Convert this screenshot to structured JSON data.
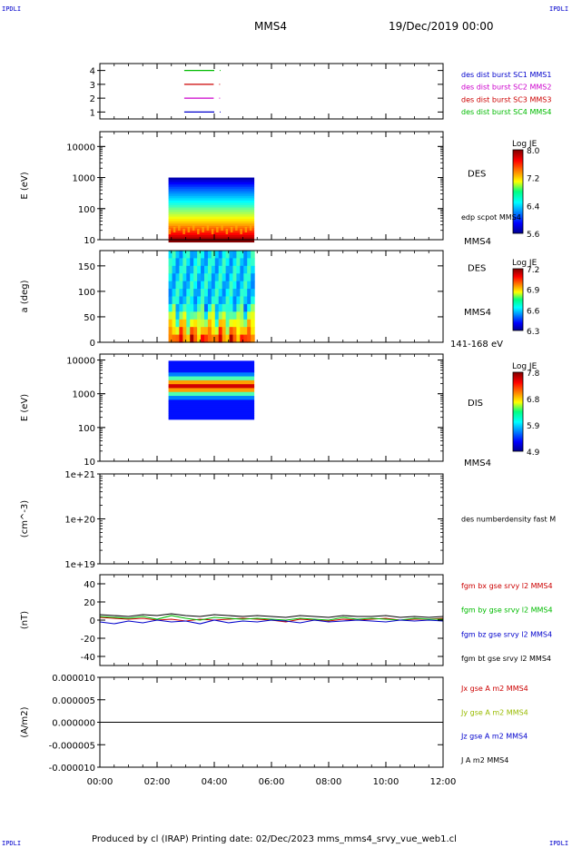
{
  "corners": {
    "tl": "IPDLI",
    "tr": "IPDLI",
    "bl": "IPDLI",
    "br": "IPDLI"
  },
  "header": {
    "spacecraft": "MMS4",
    "date": "19/Dec/2019 00:00"
  },
  "footer": {
    "text": "Produced by cl (IRAP)   Printing date: 02/Dec/2023   mms_mms4_srvy_vue_web1.cl"
  },
  "colors": {
    "mms1": "#0000cc",
    "mms2": "#cc00cc",
    "mms3": "#cc0000",
    "mms4": "#00bb00",
    "black": "#000000"
  },
  "chart_data": [
    {
      "type": "line",
      "id": "burst",
      "ylim": [
        0.5,
        4.5
      ],
      "yticks": [
        "1",
        "2",
        "3",
        "4"
      ],
      "legend": [
        {
          "label": "des dist burst SC1 MMS1",
          "color": "#0000cc"
        },
        {
          "label": "des dist burst SC2 MMS2",
          "color": "#cc00cc"
        },
        {
          "label": "des dist burst SC3 MMS3",
          "color": "#cc0000"
        },
        {
          "label": "des dist burst SC4 MMS4",
          "color": "#00bb00"
        }
      ],
      "series": [
        {
          "y": 4,
          "x": [
            2.95,
            4.0
          ],
          "color": "#00bb00"
        },
        {
          "y": 3,
          "x": [
            2.95,
            3.98
          ],
          "color": "#cc0000"
        },
        {
          "y": 2,
          "x": [
            2.95,
            3.98
          ],
          "color": "#cc00cc"
        },
        {
          "y": 1,
          "x": [
            2.95,
            4.0
          ],
          "color": "#0000cc"
        }
      ]
    },
    {
      "type": "heatmap",
      "id": "des-energy",
      "ylabel": "E (eV)",
      "log": true,
      "ylim": [
        10,
        30000
      ],
      "yticks": [
        "10",
        "100",
        "1000",
        "10000"
      ],
      "xrange": [
        2.4,
        5.4
      ],
      "erange": [
        10,
        1000
      ],
      "right_label": "DES",
      "right_sub": "edp scpot MMS4",
      "bottom_right": "MMS4",
      "colorbar": {
        "title": "Log JE",
        "ticks": [
          "8.0",
          "7.2",
          "6.4",
          "5.6"
        ]
      }
    },
    {
      "type": "heatmap",
      "id": "des-pitch",
      "ylabel": "a (deg)",
      "ylim": [
        0,
        180
      ],
      "yticks": [
        "0",
        "50",
        "100",
        "150"
      ],
      "xrange": [
        2.4,
        5.4
      ],
      "right_label": "DES",
      "right_sub": "MMS4",
      "bottom_right": "141-168 eV",
      "colorbar": {
        "title": "Log JE",
        "ticks": [
          "7.2",
          "6.9",
          "6.6",
          "6.3"
        ]
      }
    },
    {
      "type": "heatmap",
      "id": "dis-energy",
      "ylabel": "E (eV)",
      "log": true,
      "ylim": [
        10,
        15000
      ],
      "yticks": [
        "10",
        "100",
        "1000",
        "10000"
      ],
      "xrange": [
        2.4,
        5.4
      ],
      "erange": [
        200,
        9500
      ],
      "right_label": "DIS",
      "bottom_right": "MMS4",
      "colorbar": {
        "title": "Log JE",
        "ticks": [
          "7.8",
          "6.8",
          "5.9",
          "4.9"
        ]
      }
    },
    {
      "type": "line",
      "id": "density",
      "ylabel": "(cm^-3)",
      "log": true,
      "ylim": [
        1e+19,
        1e+21
      ],
      "yticks": [
        "1e+19",
        "1e+20",
        "1e+21"
      ],
      "legend": [
        {
          "label": "des numberdensity fast M",
          "color": "#000000"
        }
      ],
      "series": []
    },
    {
      "type": "line",
      "id": "fgm",
      "ylabel": "(nT)",
      "ylim": [
        -50,
        50
      ],
      "yticks": [
        "-40",
        "-20",
        "0",
        "20",
        "40"
      ],
      "legend": [
        {
          "label": "fgm bx gse srvy l2 MMS4",
          "color": "#cc0000"
        },
        {
          "label": "fgm by gse srvy l2 MMS4",
          "color": "#00bb00"
        },
        {
          "label": "fgm bz gse srvy l2 MMS4",
          "color": "#0000cc"
        },
        {
          "label": "fgm bt gse srvy l2 MMS4",
          "color": "#000000"
        }
      ],
      "series": [
        {
          "name": "bx",
          "color": "#cc0000",
          "x": [
            0,
            0.5,
            1,
            1.5,
            2,
            2.5,
            3,
            3.5,
            4,
            4.5,
            5,
            5.5,
            6,
            6.5,
            7,
            7.5,
            8,
            8.5,
            9,
            9.5,
            10,
            10.5,
            11,
            11.5,
            12
          ],
          "y": [
            3,
            2,
            1,
            2,
            0,
            1,
            -1,
            1,
            0,
            1,
            2,
            1,
            0,
            -2,
            1,
            0,
            -1,
            1,
            0,
            1,
            2,
            0,
            1,
            1,
            2
          ]
        },
        {
          "name": "by",
          "color": "#00bb00",
          "x": [
            0,
            0.5,
            1,
            1.5,
            2,
            2.5,
            3,
            3.5,
            4,
            4.5,
            5,
            5.5,
            6,
            6.5,
            7,
            7.5,
            8,
            8.5,
            9,
            9.5,
            10,
            10.5,
            11,
            11.5,
            12
          ],
          "y": [
            4,
            3,
            2,
            4,
            1,
            5,
            2,
            0,
            3,
            2,
            1,
            2,
            1,
            0,
            2,
            1,
            0,
            3,
            1,
            2,
            1,
            0,
            2,
            1,
            1
          ]
        },
        {
          "name": "bz",
          "color": "#0000cc",
          "x": [
            0,
            0.5,
            1,
            1.5,
            2,
            2.5,
            3,
            3.5,
            4,
            4.5,
            5,
            5.5,
            6,
            6.5,
            7,
            7.5,
            8,
            8.5,
            9,
            9.5,
            10,
            10.5,
            11,
            11.5,
            12
          ],
          "y": [
            -2,
            -4,
            -1,
            -3,
            0,
            -2,
            -1,
            -4,
            0,
            -3,
            -1,
            -2,
            0,
            -1,
            -3,
            0,
            -2,
            -1,
            0,
            -1,
            -2,
            0,
            -1,
            0,
            -1
          ]
        },
        {
          "name": "bt",
          "color": "#000000",
          "x": [
            0,
            0.5,
            1,
            1.5,
            2,
            2.5,
            3,
            3.5,
            4,
            4.5,
            5,
            5.5,
            6,
            6.5,
            7,
            7.5,
            8,
            8.5,
            9,
            9.5,
            10,
            10.5,
            11,
            11.5,
            12
          ],
          "y": [
            6,
            5,
            4,
            6,
            5,
            7,
            5,
            4,
            6,
            5,
            4,
            5,
            4,
            3,
            5,
            4,
            3,
            5,
            4,
            4,
            5,
            3,
            4,
            3,
            4
          ]
        }
      ]
    },
    {
      "type": "line",
      "id": "current",
      "ylabel": "(A/m2)",
      "ylim": [
        -1e-05,
        1e-05
      ],
      "yticks": [
        "-0.000010",
        "-0.000005",
        "0.000000",
        "0.000005",
        "0.000010"
      ],
      "legend": [
        {
          "label": "Jx gse A m2 MMS4",
          "color": "#cc0000"
        },
        {
          "label": "Jy gse A m2 MMS4",
          "color": "#99bb00"
        },
        {
          "label": "Jz gse A m2 MMS4",
          "color": "#0000cc"
        },
        {
          "label": "J A m2 MMS4",
          "color": "#000000"
        }
      ],
      "series": [
        {
          "name": "J",
          "color": "#000000",
          "x": [
            0,
            12
          ],
          "y": [
            0,
            0
          ]
        }
      ]
    }
  ],
  "xaxis": {
    "xlim": [
      0,
      12
    ],
    "ticks": [
      {
        "v": 0,
        "t": "00:00"
      },
      {
        "v": 2,
        "t": "02:00"
      },
      {
        "v": 4,
        "t": "04:00"
      },
      {
        "v": 6,
        "t": "06:00"
      },
      {
        "v": 8,
        "t": "08:00"
      },
      {
        "v": 10,
        "t": "10:00"
      },
      {
        "v": 12,
        "t": "12:00"
      }
    ]
  }
}
